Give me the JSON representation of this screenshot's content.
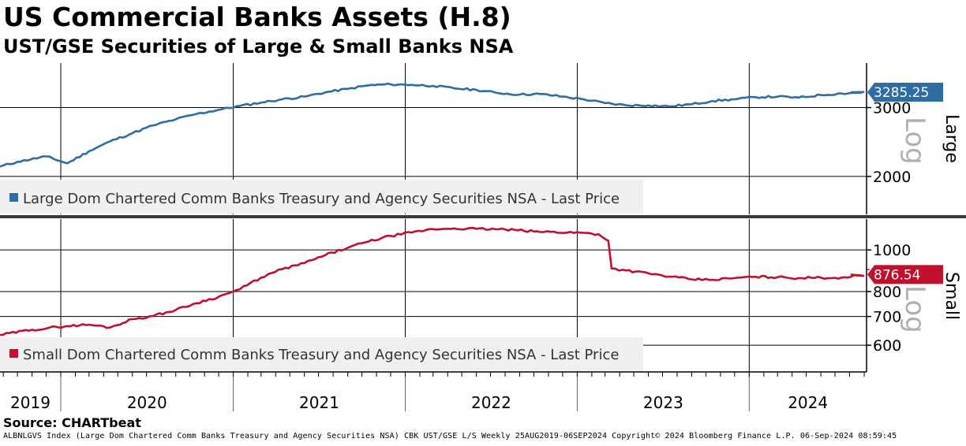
{
  "title": "US Commercial Banks Assets (H.8)",
  "subtitle": "UST/GSE Securities of Large & Small Banks NSA",
  "source": "Source: CHARTbeat",
  "footer": "ALBNLGVS Index (Large Dom Chartered Comm Banks Treasury and Agency Securities NSA) CBK UST/GSE L/S  Weekly 25AUG2019-06SEP2024 Copyright© 2024 Bloomberg Finance L.P. 06-Sep-2024 08:59:45",
  "colors": {
    "large": "#2e6da4",
    "small": "#c0102e",
    "grid": "#000000",
    "legend_bg": "#f0f0f0"
  },
  "chart_data": [
    {
      "type": "line",
      "panel": "top",
      "axis_side_label": "Large",
      "scale_word": "Log",
      "scale": "log",
      "ylim": [
        1600,
        3900
      ],
      "yticks": [
        2000,
        3000
      ],
      "legend": "Large Dom Chartered Comm Banks Treasury and Agency Securities NSA - Last Price",
      "last_value_label": "3285.25",
      "series": [
        {
          "name": "Large Dom Chartered Comm Banks Treasury and Agency Securities NSA - Last Price",
          "x": [
            "2019-08-25",
            "2019-10-01",
            "2019-12-01",
            "2020-01-15",
            "2020-03-01",
            "2020-04-15",
            "2020-06-01",
            "2020-07-15",
            "2020-09-01",
            "2020-10-15",
            "2020-12-01",
            "2021-01-15",
            "2021-03-01",
            "2021-04-15",
            "2021-06-01",
            "2021-07-15",
            "2021-09-01",
            "2021-10-15",
            "2021-12-01",
            "2022-01-15",
            "2022-03-01",
            "2022-04-15",
            "2022-06-01",
            "2022-07-15",
            "2022-09-01",
            "2022-10-15",
            "2022-12-01",
            "2023-01-15",
            "2023-03-01",
            "2023-04-15",
            "2023-06-01",
            "2023-07-15",
            "2023-09-01",
            "2023-10-15",
            "2023-12-01",
            "2024-01-15",
            "2024-03-01",
            "2024-04-15",
            "2024-06-01",
            "2024-07-15",
            "2024-09-06"
          ],
          "y": [
            2120,
            2180,
            2250,
            2160,
            2320,
            2460,
            2580,
            2700,
            2800,
            2890,
            2960,
            3030,
            3090,
            3150,
            3200,
            3280,
            3350,
            3420,
            3440,
            3430,
            3410,
            3360,
            3330,
            3270,
            3240,
            3250,
            3200,
            3150,
            3080,
            3040,
            3040,
            3020,
            3060,
            3120,
            3150,
            3190,
            3200,
            3180,
            3230,
            3260,
            3285.25
          ]
        }
      ]
    },
    {
      "type": "line",
      "panel": "bottom",
      "axis_side_label": "Small",
      "scale_word": "Log",
      "scale": "log",
      "ylim": [
        520,
        1180
      ],
      "yticks": [
        600,
        700,
        800,
        1000
      ],
      "legend": "Small Dom Chartered Comm Banks Treasury and Agency Securities NSA - Last Price",
      "last_value_label": "876.54",
      "series": [
        {
          "name": "Small Dom Chartered Comm Banks Treasury and Agency Securities NSA - Last Price",
          "x": [
            "2019-08-25",
            "2019-11-01",
            "2020-01-15",
            "2020-03-01",
            "2020-04-15",
            "2020-06-01",
            "2020-07-15",
            "2020-09-01",
            "2020-10-15",
            "2020-12-01",
            "2021-01-15",
            "2021-03-01",
            "2021-04-15",
            "2021-06-01",
            "2021-07-15",
            "2021-09-01",
            "2021-10-15",
            "2021-12-01",
            "2022-01-15",
            "2022-03-01",
            "2022-04-15",
            "2022-06-01",
            "2022-08-01",
            "2022-10-01",
            "2023-01-15",
            "2023-02-15",
            "2023-03-08",
            "2023-03-15",
            "2023-04-15",
            "2023-06-01",
            "2023-07-15",
            "2023-09-01",
            "2023-10-15",
            "2023-12-01",
            "2024-01-15",
            "2024-03-01",
            "2024-04-15",
            "2024-06-01",
            "2024-07-15",
            "2024-09-06"
          ],
          "y": [
            634,
            652,
            665,
            670,
            660,
            690,
            702,
            725,
            752,
            778,
            810,
            862,
            902,
            932,
            972,
            1012,
            1046,
            1078,
            1098,
            1118,
            1122,
            1120,
            1116,
            1104,
            1096,
            1088,
            1050,
            905,
            896,
            882,
            867,
            854,
            852,
            860,
            866,
            864,
            860,
            862,
            862,
            876.54
          ]
        }
      ]
    },
    {
      "type": "axis",
      "x_tick_labels": [
        "2019",
        "2020",
        "2021",
        "2022",
        "2023",
        "2024"
      ],
      "xlim": [
        "2019-08-25",
        "2024-09-06"
      ]
    }
  ]
}
